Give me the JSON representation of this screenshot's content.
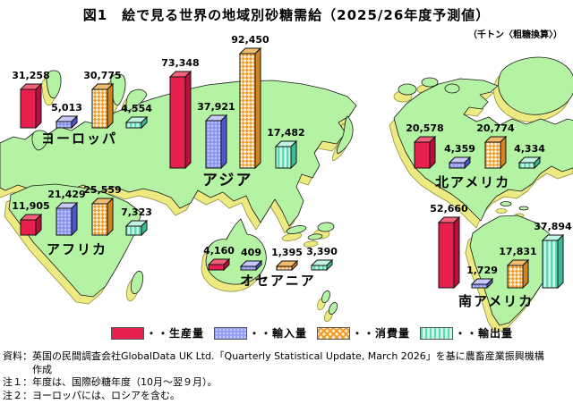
{
  "title": "図1　絵で見る世界の地域別砂糖需給（2025/26年度予測値）",
  "unit_note": "（千トン〈粗糖換算〉）",
  "legend": [
    {
      "key": "production",
      "label": "・・生産量",
      "color": "#e8204e",
      "pattern": "solid"
    },
    {
      "key": "import",
      "label": "・・輸入量",
      "color": "#96a0f2",
      "pattern": "dots"
    },
    {
      "key": "consumption",
      "label": "・・消費量",
      "color": "#f09a28",
      "pattern": "diagonal-check"
    },
    {
      "key": "export",
      "label": "・・輸出量",
      "color": "#5bd8b4",
      "pattern": "vertical-stripes"
    }
  ],
  "chart_data": {
    "type": "bar",
    "title": "図1　絵で見る世界の地域別砂糖需給（2025/26年度予測値）",
    "unit": "千トン（粗糖換算）",
    "series_names": [
      "生産量",
      "輸入量",
      "消費量",
      "輸出量"
    ],
    "series_keys": [
      "production",
      "import",
      "consumption",
      "export"
    ],
    "regions": [
      {
        "key": "europe",
        "name": "ヨーロッパ",
        "production": 31258,
        "import": 5013,
        "consumption": 30775,
        "export": 4554
      },
      {
        "key": "asia",
        "name": "アジア",
        "production": 73348,
        "import": 37921,
        "consumption": 92450,
        "export": 17482
      },
      {
        "key": "africa",
        "name": "アフリカ",
        "production": 11905,
        "import": 21429,
        "consumption": 25559,
        "export": 7323
      },
      {
        "key": "oceania",
        "name": "オセアニア",
        "production": 4160,
        "import": 409,
        "consumption": 1395,
        "export": 3390
      },
      {
        "key": "north-america",
        "name": "北アメリカ",
        "production": 20578,
        "import": 4359,
        "consumption": 20774,
        "export": 4334
      },
      {
        "key": "south-america",
        "name": "南アメリカ",
        "production": 52660,
        "import": 1729,
        "consumption": 17831,
        "export": 37894
      }
    ]
  },
  "footer": {
    "source_line1": "資料：英国の民間調査会社GlobalData UK Ltd.「Quarterly Statistical Update, March 2026」を基に農畜産業振興機構",
    "source_line2": "作成",
    "note1": "注１：年度は、国際砂糖年度（10月～翌９月）。",
    "note2": "注２：ヨーロッパには、ロシアを含む。"
  }
}
